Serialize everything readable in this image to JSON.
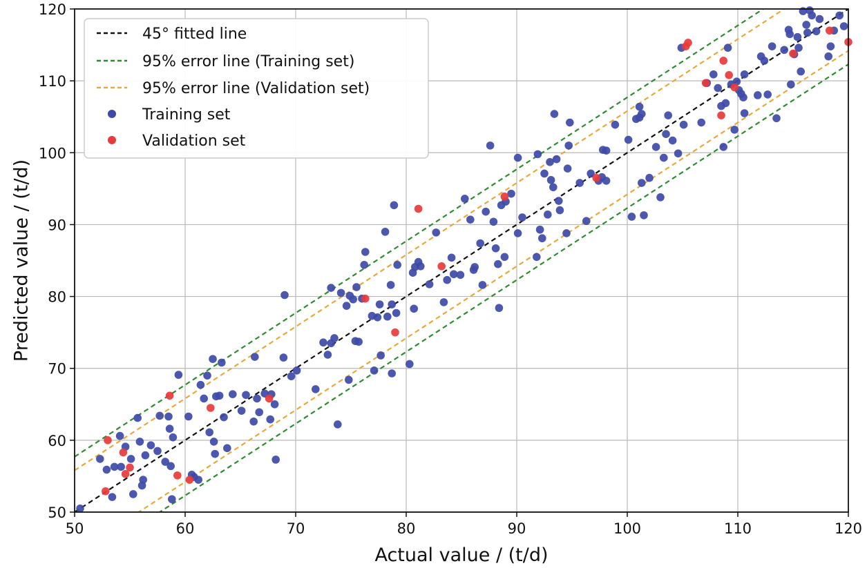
{
  "chart_data": {
    "type": "scatter",
    "xlabel": "Actual value / (t/d)",
    "ylabel": "Predicted value / (t/d)",
    "xlim": [
      50,
      120
    ],
    "ylim": [
      50,
      120
    ],
    "xticks": [
      50,
      60,
      70,
      80,
      90,
      100,
      110,
      120
    ],
    "yticks": [
      50,
      60,
      70,
      80,
      90,
      100,
      110,
      120
    ],
    "grid": true,
    "legend_position": "top-left",
    "colors": {
      "fit": "#111111",
      "train_band": "#2e8b2e",
      "val_band": "#e8a83a",
      "train_points": "#3d4aa6",
      "val_points": "#e83a3a"
    },
    "lines": [
      {
        "name": "45° fitted line",
        "offset": 0,
        "color": "#111111"
      },
      {
        "name": "95% error line (Training set)",
        "offset": 7.7,
        "color": "#2e8b2e"
      },
      {
        "name": "95% error line (Validation set)",
        "offset": 5.8,
        "color": "#e8a83a"
      }
    ],
    "series": [
      {
        "name": "Training set",
        "color": "#3d4aa6",
        "points": [
          [
            50.5,
            50.5
          ],
          [
            52.3,
            57.4
          ],
          [
            52.9,
            55.9
          ],
          [
            53.4,
            52.1
          ],
          [
            53.6,
            56.3
          ],
          [
            54.2,
            56.3
          ],
          [
            54.1,
            60.6
          ],
          [
            54.6,
            59.1
          ],
          [
            55.1,
            57.4
          ],
          [
            55.3,
            52.5
          ],
          [
            55.7,
            63.1
          ],
          [
            55.9,
            59.8
          ],
          [
            56.1,
            53.7
          ],
          [
            56.2,
            54.5
          ],
          [
            56.4,
            57.9
          ],
          [
            56.9,
            59.3
          ],
          [
            57.5,
            58.5
          ],
          [
            57.7,
            63.4
          ],
          [
            58.2,
            57.0
          ],
          [
            58.5,
            63.3
          ],
          [
            58.7,
            56.4
          ],
          [
            58.8,
            51.8
          ],
          [
            58.6,
            61.6
          ],
          [
            58.9,
            60.4
          ],
          [
            59.4,
            69.1
          ],
          [
            60.3,
            63.3
          ],
          [
            60.6,
            55.2
          ],
          [
            60.8,
            54.9
          ],
          [
            61.2,
            54.5
          ],
          [
            61.4,
            67.7
          ],
          [
            61.7,
            65.8
          ],
          [
            62.0,
            69.0
          ],
          [
            62.2,
            61.1
          ],
          [
            62.5,
            71.3
          ],
          [
            62.6,
            59.8
          ],
          [
            62.7,
            58.1
          ],
          [
            62.8,
            66.1
          ],
          [
            63.1,
            66.2
          ],
          [
            63.3,
            70.8
          ],
          [
            63.5,
            63.2
          ],
          [
            63.8,
            58.9
          ],
          [
            64.3,
            66.4
          ],
          [
            65.1,
            64.1
          ],
          [
            65.5,
            66.3
          ],
          [
            66.2,
            62.6
          ],
          [
            66.3,
            71.6
          ],
          [
            66.5,
            65.8
          ],
          [
            66.7,
            63.9
          ],
          [
            67.2,
            66.5
          ],
          [
            67.8,
            66.4
          ],
          [
            67.7,
            62.9
          ],
          [
            68.1,
            65.0
          ],
          [
            68.2,
            57.3
          ],
          [
            68.9,
            71.5
          ],
          [
            69.0,
            80.2
          ],
          [
            69.6,
            68.9
          ],
          [
            70.1,
            69.7
          ],
          [
            71.8,
            67.1
          ],
          [
            72.5,
            73.6
          ],
          [
            72.9,
            71.9
          ],
          [
            73.2,
            73.5
          ],
          [
            73.2,
            81.2
          ],
          [
            73.5,
            74.2
          ],
          [
            73.8,
            62.2
          ],
          [
            74.1,
            80.5
          ],
          [
            74.6,
            78.7
          ],
          [
            74.8,
            68.4
          ],
          [
            74.9,
            80.1
          ],
          [
            75.2,
            79.6
          ],
          [
            75.4,
            73.8
          ],
          [
            75.5,
            81.3
          ],
          [
            75.7,
            73.7
          ],
          [
            76.0,
            79.7
          ],
          [
            76.2,
            84.4
          ],
          [
            76.3,
            86.2
          ],
          [
            76.9,
            77.3
          ],
          [
            77.1,
            69.7
          ],
          [
            77.4,
            77.1
          ],
          [
            77.6,
            78.9
          ],
          [
            77.7,
            71.8
          ],
          [
            78.1,
            89.0
          ],
          [
            78.3,
            77.2
          ],
          [
            78.6,
            81.6
          ],
          [
            78.7,
            69.3
          ],
          [
            78.7,
            78.9
          ],
          [
            78.9,
            92.7
          ],
          [
            79.1,
            77.7
          ],
          [
            79.2,
            84.4
          ],
          [
            80.3,
            70.6
          ],
          [
            80.6,
            83.3
          ],
          [
            80.7,
            78.3
          ],
          [
            80.8,
            84.1
          ],
          [
            81.1,
            84.8
          ],
          [
            81.3,
            84.2
          ],
          [
            82.1,
            81.7
          ],
          [
            82.7,
            88.9
          ],
          [
            83.4,
            79.2
          ],
          [
            83.7,
            82.3
          ],
          [
            84.1,
            85.4
          ],
          [
            84.3,
            83.1
          ],
          [
            84.9,
            83.0
          ],
          [
            85.3,
            93.6
          ],
          [
            85.8,
            90.7
          ],
          [
            86.1,
            83.7
          ],
          [
            86.2,
            84.1
          ],
          [
            86.7,
            87.4
          ],
          [
            86.9,
            81.6
          ],
          [
            87.2,
            91.8
          ],
          [
            87.6,
            101.0
          ],
          [
            87.9,
            90.4
          ],
          [
            88.1,
            86.7
          ],
          [
            88.3,
            84.5
          ],
          [
            88.4,
            78.4
          ],
          [
            88.6,
            92.7
          ],
          [
            88.9,
            85.5
          ],
          [
            89.0,
            93.2
          ],
          [
            89.5,
            94.3
          ],
          [
            90.1,
            99.3
          ],
          [
            90.1,
            88.8
          ],
          [
            90.5,
            91.0
          ],
          [
            91.8,
            85.5
          ],
          [
            91.9,
            99.8
          ],
          [
            92.1,
            89.3
          ],
          [
            92.3,
            88.1
          ],
          [
            92.5,
            97.1
          ],
          [
            92.8,
            91.4
          ],
          [
            93.0,
            98.7
          ],
          [
            93.1,
            96.2
          ],
          [
            93.3,
            95.2
          ],
          [
            93.4,
            105.4
          ],
          [
            93.6,
            99.1
          ],
          [
            93.8,
            93.3
          ],
          [
            93.9,
            92.0
          ],
          [
            94.5,
            88.8
          ],
          [
            94.6,
            97.8
          ],
          [
            94.7,
            101.0
          ],
          [
            94.8,
            104.2
          ],
          [
            95.7,
            95.8
          ],
          [
            96.3,
            90.5
          ],
          [
            96.7,
            97.1
          ],
          [
            97.4,
            96.1
          ],
          [
            97.7,
            96.6
          ],
          [
            97.8,
            100.4
          ],
          [
            98.1,
            100.3
          ],
          [
            98.1,
            96.1
          ],
          [
            98.9,
            103.9
          ],
          [
            100.1,
            101.8
          ],
          [
            100.4,
            91.1
          ],
          [
            100.8,
            104.7
          ],
          [
            101.1,
            106.4
          ],
          [
            101.3,
            105.4
          ],
          [
            101.1,
            104.9
          ],
          [
            101.3,
            95.8
          ],
          [
            101.5,
            91.3
          ],
          [
            102.0,
            96.5
          ],
          [
            102.6,
            100.8
          ],
          [
            103.0,
            93.8
          ],
          [
            103.3,
            99.3
          ],
          [
            103.5,
            102.6
          ],
          [
            103.7,
            105.2
          ],
          [
            104.1,
            101.7
          ],
          [
            104.6,
            99.9
          ],
          [
            104.9,
            114.6
          ],
          [
            105.1,
            103.9
          ],
          [
            106.7,
            104.2
          ],
          [
            107.2,
            109.7
          ],
          [
            107.8,
            110.9
          ],
          [
            108.2,
            109.0
          ],
          [
            108.5,
            106.5
          ],
          [
            108.7,
            100.8
          ],
          [
            108.9,
            106.9
          ],
          [
            109.1,
            114.6
          ],
          [
            109.4,
            109.5
          ],
          [
            109.7,
            103.2
          ],
          [
            109.9,
            109.9
          ],
          [
            110.1,
            108.7
          ],
          [
            110.3,
            108.2
          ],
          [
            110.5,
            107.7
          ],
          [
            110.6,
            110.9
          ],
          [
            110.6,
            105.5
          ],
          [
            111.8,
            108.0
          ],
          [
            112.1,
            113.4
          ],
          [
            112.4,
            112.8
          ],
          [
            112.7,
            108.1
          ],
          [
            113.1,
            114.8
          ],
          [
            113.5,
            104.8
          ],
          [
            114.2,
            114.3
          ],
          [
            114.6,
            117.1
          ],
          [
            114.7,
            116.5
          ],
          [
            114.8,
            109.5
          ],
          [
            115.1,
            113.7
          ],
          [
            115.4,
            116.1
          ],
          [
            115.5,
            114.6
          ],
          [
            115.7,
            111.3
          ],
          [
            115.9,
            119.7
          ],
          [
            116.2,
            117.8
          ],
          [
            116.3,
            116.7
          ],
          [
            116.5,
            119.8
          ],
          [
            116.7,
            119.1
          ],
          [
            117.1,
            116.9
          ],
          [
            117.4,
            118.6
          ],
          [
            118.2,
            113.4
          ],
          [
            118.4,
            114.8
          ],
          [
            118.7,
            117.0
          ],
          [
            119.2,
            119.1
          ],
          [
            119.6,
            117.6
          ]
        ]
      },
      {
        "name": "Validation set",
        "color": "#e83a3a",
        "points": [
          [
            52.8,
            52.9
          ],
          [
            53.0,
            60.0
          ],
          [
            54.4,
            58.3
          ],
          [
            54.6,
            55.3
          ],
          [
            55.0,
            56.2
          ],
          [
            58.6,
            66.2
          ],
          [
            59.3,
            55.1
          ],
          [
            60.4,
            54.5
          ],
          [
            62.3,
            64.5
          ],
          [
            67.6,
            65.8
          ],
          [
            76.3,
            79.7
          ],
          [
            79.0,
            75.0
          ],
          [
            81.1,
            92.2
          ],
          [
            83.2,
            84.2
          ],
          [
            88.9,
            93.9
          ],
          [
            97.2,
            96.5
          ],
          [
            105.3,
            114.8
          ],
          [
            105.5,
            115.3
          ],
          [
            107.1,
            109.7
          ],
          [
            108.5,
            105.2
          ],
          [
            108.7,
            112.8
          ],
          [
            109.2,
            110.8
          ],
          [
            109.7,
            109.1
          ],
          [
            115.0,
            113.8
          ],
          [
            118.3,
            117.0
          ],
          [
            120.0,
            115.4
          ]
        ]
      }
    ]
  }
}
